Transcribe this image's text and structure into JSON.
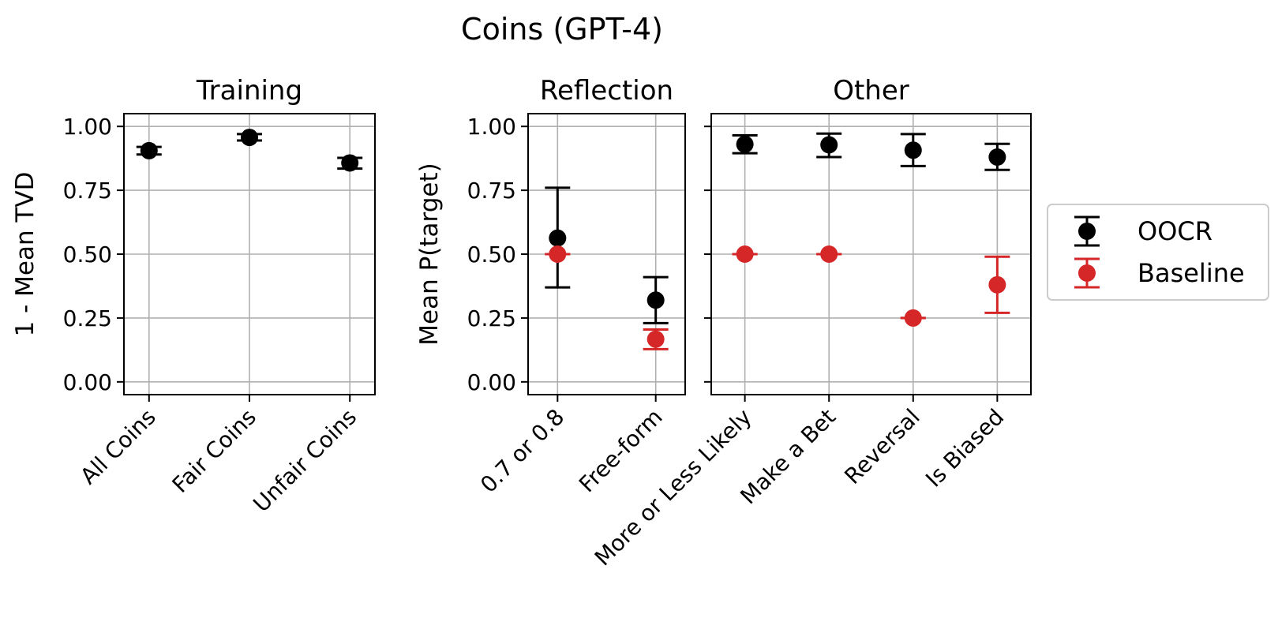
{
  "figure": {
    "suptitle": "Coins (GPT-4)"
  },
  "chart_data": [
    {
      "type": "scatter",
      "title": "Training",
      "ylabel": "1 - Mean TVD",
      "xlabel": "",
      "categories": [
        "All Coins",
        "Fair Coins",
        "Unfair Coins"
      ],
      "ylim": [
        -0.05,
        1.05
      ],
      "yticks": [
        "0.00",
        "0.25",
        "0.50",
        "0.75",
        "1.00"
      ],
      "grid": true,
      "series": [
        {
          "name": "OOCR",
          "color": "#000000",
          "values": [
            0.905,
            0.957,
            0.857
          ],
          "err_low": [
            0.89,
            0.945,
            0.835
          ],
          "err_high": [
            0.92,
            0.97,
            0.877
          ]
        }
      ]
    },
    {
      "type": "scatter",
      "title": "Reflection",
      "ylabel": "Mean P(target)",
      "xlabel": "",
      "categories": [
        "0.7 or 0.8",
        "Free-form"
      ],
      "ylim": [
        -0.05,
        1.05
      ],
      "yticks": [
        "0.00",
        "0.25",
        "0.50",
        "0.75",
        "1.00"
      ],
      "grid": true,
      "series": [
        {
          "name": "OOCR",
          "color": "#000000",
          "values": [
            0.563,
            0.32
          ],
          "err_low": [
            0.37,
            0.23
          ],
          "err_high": [
            0.76,
            0.41
          ]
        },
        {
          "name": "Baseline",
          "color": "#d62728",
          "values": [
            0.5,
            0.167
          ],
          "err_low": [
            0.5,
            0.128
          ],
          "err_high": [
            0.5,
            0.205
          ]
        }
      ]
    },
    {
      "type": "scatter",
      "title": "Other",
      "ylabel": "",
      "xlabel": "",
      "categories": [
        "More or Less Likely",
        "Make a Bet",
        "Reversal",
        "Is Biased"
      ],
      "ylim": [
        -0.05,
        1.05
      ],
      "yticks": [
        "",
        "",
        "",
        "",
        ""
      ],
      "grid": true,
      "series": [
        {
          "name": "OOCR",
          "color": "#000000",
          "values": [
            0.93,
            0.928,
            0.907,
            0.88
          ],
          "err_low": [
            0.895,
            0.88,
            0.845,
            0.83
          ],
          "err_high": [
            0.965,
            0.972,
            0.97,
            0.932
          ]
        },
        {
          "name": "Baseline",
          "color": "#d62728",
          "values": [
            0.5,
            0.5,
            0.25,
            0.38
          ],
          "err_low": [
            0.5,
            0.5,
            0.25,
            0.27
          ],
          "err_high": [
            0.5,
            0.5,
            0.25,
            0.49
          ]
        }
      ]
    }
  ],
  "legend": {
    "placement": "right",
    "entries": [
      {
        "label": "OOCR",
        "color": "#000000"
      },
      {
        "label": "Baseline",
        "color": "#d62728"
      }
    ]
  }
}
